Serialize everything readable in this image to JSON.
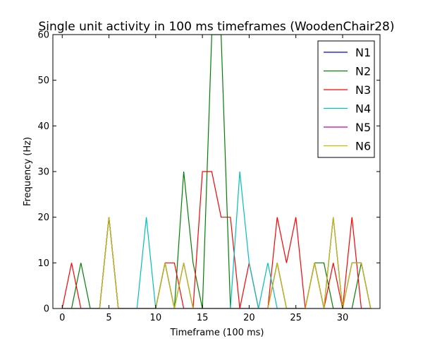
{
  "chart_data": {
    "type": "line",
    "title": "Single unit activity in 100 ms timeframes (WoodenChair28)",
    "xlabel": "Timeframe (100 ms)",
    "ylabel": "Frequency (Hz)",
    "xlim": [
      -1,
      34
    ],
    "ylim": [
      0,
      60
    ],
    "xticks": [
      0,
      5,
      10,
      15,
      20,
      25,
      30
    ],
    "yticks": [
      0,
      10,
      20,
      30,
      40,
      50,
      60
    ],
    "grid": false,
    "legend_position": "top-right",
    "x": [
      0,
      1,
      2,
      3,
      4,
      5,
      6,
      7,
      8,
      9,
      10,
      11,
      12,
      13,
      14,
      15,
      16,
      17,
      18,
      19,
      20,
      21,
      22,
      23,
      24,
      25,
      26,
      27,
      28,
      29,
      30,
      31,
      32,
      33
    ],
    "series": [
      {
        "name": "N1",
        "color": "#0000ff",
        "values": [
          0,
          0,
          0,
          0,
          0,
          0,
          0,
          0,
          0,
          0,
          0,
          0,
          0,
          0,
          0,
          0,
          0,
          0,
          0,
          0,
          0,
          0,
          0,
          0,
          0,
          0,
          0,
          0,
          0,
          0,
          0,
          0,
          0,
          0
        ]
      },
      {
        "name": "N2",
        "color": "#008000",
        "values": [
          0,
          0,
          10,
          0,
          0,
          20,
          0,
          0,
          0,
          0,
          0,
          10,
          0,
          30,
          10,
          0,
          60,
          60,
          0,
          0,
          0,
          0,
          0,
          10,
          0,
          0,
          0,
          10,
          10,
          0,
          0,
          0,
          10,
          0
        ]
      },
      {
        "name": "N3",
        "color": "#ff0000",
        "values": [
          0,
          10,
          0,
          0,
          0,
          20,
          0,
          0,
          0,
          0,
          0,
          10,
          10,
          0,
          0,
          30,
          30,
          20,
          20,
          0,
          10,
          0,
          0,
          20,
          10,
          20,
          0,
          10,
          0,
          10,
          0,
          20,
          0,
          0
        ]
      },
      {
        "name": "N4",
        "color": "#00bfbf",
        "values": [
          0,
          0,
          0,
          0,
          0,
          20,
          0,
          0,
          0,
          20,
          0,
          10,
          0,
          10,
          0,
          0,
          0,
          0,
          0,
          30,
          10,
          0,
          10,
          0,
          0,
          0,
          0,
          10,
          0,
          20,
          0,
          10,
          10,
          0
        ]
      },
      {
        "name": "N5",
        "color": "#bf00bf",
        "values": [
          0,
          0,
          0,
          0,
          0,
          20,
          0,
          0,
          0,
          0,
          0,
          10,
          0,
          10,
          0,
          0,
          0,
          0,
          0,
          0,
          0,
          0,
          0,
          10,
          0,
          0,
          0,
          10,
          0,
          20,
          0,
          10,
          10,
          0
        ]
      },
      {
        "name": "N6",
        "color": "#bfbf00",
        "values": [
          0,
          0,
          0,
          0,
          0,
          20,
          0,
          0,
          0,
          0,
          0,
          10,
          0,
          10,
          0,
          0,
          0,
          0,
          0,
          0,
          0,
          0,
          0,
          10,
          0,
          0,
          0,
          10,
          0,
          20,
          0,
          10,
          10,
          0
        ]
      }
    ]
  }
}
